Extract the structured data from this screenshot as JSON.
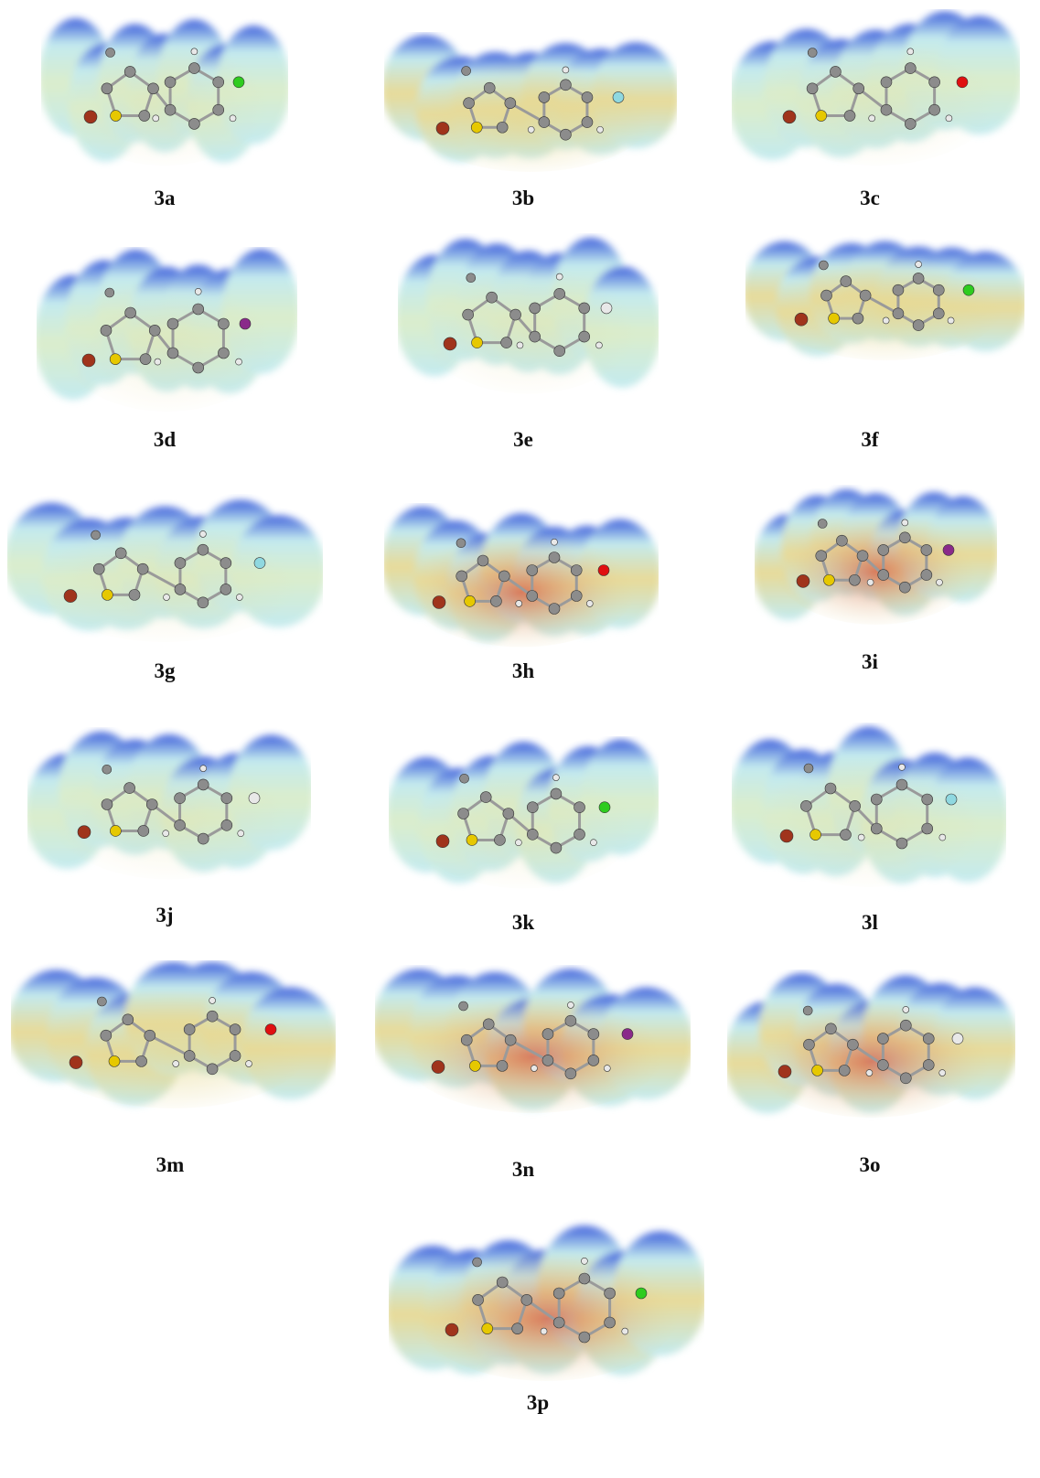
{
  "figure": {
    "panels": [
      {
        "label": "3a"
      },
      {
        "label": "3b"
      },
      {
        "label": "3c"
      },
      {
        "label": "3d"
      },
      {
        "label": "3e"
      },
      {
        "label": "3f"
      },
      {
        "label": "3g"
      },
      {
        "label": "3h"
      },
      {
        "label": "3i"
      },
      {
        "label": "3j"
      },
      {
        "label": "3k"
      },
      {
        "label": "3l"
      },
      {
        "label": "3m"
      },
      {
        "label": "3n"
      },
      {
        "label": "3o"
      },
      {
        "label": "3p"
      }
    ]
  },
  "colors": {
    "surface_blue": "#2a4fd8",
    "surface_cyan": "#bfe9ee",
    "surface_green": "#d8ecc8",
    "surface_yellow": "#e6d890",
    "surface_red": "#d24a3a",
    "atom_carbon": "#8c8c8c",
    "atom_hydrogen": "#e8e8e8",
    "atom_sulfur": "#e6c800",
    "atom_bromine": "#a0341c",
    "atom_chlorine": "#2ecc1f",
    "atom_fluorine": "#8fd8e0",
    "atom_oxygen": "#e01010",
    "atom_iodine": "#8a2a8a"
  }
}
